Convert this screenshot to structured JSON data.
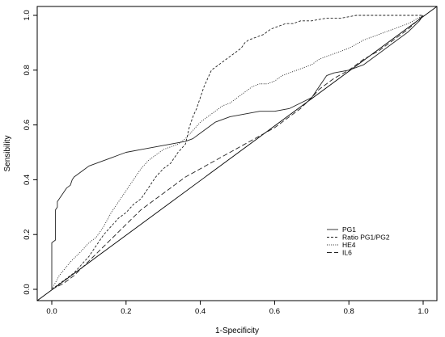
{
  "chart_data": {
    "type": "line",
    "title": "",
    "xlabel": "1-Specificity",
    "ylabel": "Sensibility",
    "xlim": [
      0,
      1
    ],
    "ylim": [
      0,
      1
    ],
    "x_ticks": [
      "0.0",
      "0.2",
      "0.4",
      "0.6",
      "0.8",
      "1.0"
    ],
    "y_ticks": [
      "0.0",
      "0.2",
      "0.4",
      "0.6",
      "0.8",
      "1.0"
    ],
    "grid": false,
    "legend_position": "bottom-right",
    "reference_line": "diagonal",
    "series": [
      {
        "name": "PG1",
        "line_style": "solid",
        "points": [
          [
            0,
            0
          ],
          [
            0,
            0.17
          ],
          [
            0.01,
            0.18
          ],
          [
            0.01,
            0.29
          ],
          [
            0.015,
            0.3
          ],
          [
            0.015,
            0.32
          ],
          [
            0.02,
            0.33
          ],
          [
            0.025,
            0.34
          ],
          [
            0.03,
            0.35
          ],
          [
            0.04,
            0.37
          ],
          [
            0.05,
            0.38
          ],
          [
            0.055,
            0.4
          ],
          [
            0.06,
            0.41
          ],
          [
            0.07,
            0.42
          ],
          [
            0.08,
            0.43
          ],
          [
            0.09,
            0.44
          ],
          [
            0.1,
            0.45
          ],
          [
            0.12,
            0.46
          ],
          [
            0.14,
            0.47
          ],
          [
            0.16,
            0.48
          ],
          [
            0.18,
            0.49
          ],
          [
            0.2,
            0.5
          ],
          [
            0.24,
            0.51
          ],
          [
            0.28,
            0.52
          ],
          [
            0.32,
            0.53
          ],
          [
            0.36,
            0.54
          ],
          [
            0.38,
            0.55
          ],
          [
            0.4,
            0.57
          ],
          [
            0.42,
            0.59
          ],
          [
            0.44,
            0.61
          ],
          [
            0.46,
            0.62
          ],
          [
            0.48,
            0.63
          ],
          [
            0.52,
            0.64
          ],
          [
            0.56,
            0.65
          ],
          [
            0.6,
            0.65
          ],
          [
            0.64,
            0.66
          ],
          [
            0.67,
            0.68
          ],
          [
            0.7,
            0.7
          ],
          [
            0.72,
            0.74
          ],
          [
            0.74,
            0.78
          ],
          [
            0.76,
            0.79
          ],
          [
            0.8,
            0.8
          ],
          [
            0.84,
            0.82
          ],
          [
            0.88,
            0.86
          ],
          [
            0.92,
            0.9
          ],
          [
            0.96,
            0.94
          ],
          [
            0.99,
            0.98
          ],
          [
            1.0,
            1.0
          ]
        ]
      },
      {
        "name": "Ratio PG1/PG2",
        "line_style": "dashed",
        "points": [
          [
            0,
            0
          ],
          [
            0.02,
            0.02
          ],
          [
            0.04,
            0.04
          ],
          [
            0.06,
            0.06
          ],
          [
            0.08,
            0.09
          ],
          [
            0.1,
            0.12
          ],
          [
            0.12,
            0.16
          ],
          [
            0.14,
            0.2
          ],
          [
            0.16,
            0.23
          ],
          [
            0.18,
            0.26
          ],
          [
            0.2,
            0.28
          ],
          [
            0.22,
            0.31
          ],
          [
            0.24,
            0.33
          ],
          [
            0.26,
            0.37
          ],
          [
            0.28,
            0.41
          ],
          [
            0.3,
            0.44
          ],
          [
            0.32,
            0.46
          ],
          [
            0.34,
            0.5
          ],
          [
            0.36,
            0.53
          ],
          [
            0.37,
            0.59
          ],
          [
            0.38,
            0.63
          ],
          [
            0.39,
            0.66
          ],
          [
            0.4,
            0.7
          ],
          [
            0.41,
            0.74
          ],
          [
            0.42,
            0.77
          ],
          [
            0.43,
            0.8
          ],
          [
            0.45,
            0.82
          ],
          [
            0.47,
            0.84
          ],
          [
            0.49,
            0.86
          ],
          [
            0.5,
            0.87
          ],
          [
            0.51,
            0.88
          ],
          [
            0.52,
            0.9
          ],
          [
            0.53,
            0.91
          ],
          [
            0.55,
            0.92
          ],
          [
            0.57,
            0.93
          ],
          [
            0.59,
            0.95
          ],
          [
            0.61,
            0.96
          ],
          [
            0.63,
            0.97
          ],
          [
            0.65,
            0.97
          ],
          [
            0.67,
            0.98
          ],
          [
            0.7,
            0.98
          ],
          [
            0.74,
            0.99
          ],
          [
            0.78,
            0.99
          ],
          [
            0.82,
            1.0
          ],
          [
            0.88,
            1.0
          ],
          [
            0.95,
            1.0
          ],
          [
            1.0,
            1.0
          ]
        ]
      },
      {
        "name": "HE4",
        "line_style": "dotted",
        "points": [
          [
            0,
            0
          ],
          [
            0.02,
            0.05
          ],
          [
            0.05,
            0.1
          ],
          [
            0.08,
            0.14
          ],
          [
            0.1,
            0.17
          ],
          [
            0.12,
            0.19
          ],
          [
            0.14,
            0.23
          ],
          [
            0.16,
            0.28
          ],
          [
            0.18,
            0.32
          ],
          [
            0.2,
            0.36
          ],
          [
            0.22,
            0.4
          ],
          [
            0.24,
            0.44
          ],
          [
            0.26,
            0.47
          ],
          [
            0.28,
            0.49
          ],
          [
            0.3,
            0.51
          ],
          [
            0.32,
            0.52
          ],
          [
            0.34,
            0.53
          ],
          [
            0.36,
            0.55
          ],
          [
            0.38,
            0.58
          ],
          [
            0.4,
            0.61
          ],
          [
            0.42,
            0.63
          ],
          [
            0.44,
            0.65
          ],
          [
            0.46,
            0.67
          ],
          [
            0.48,
            0.68
          ],
          [
            0.5,
            0.7
          ],
          [
            0.52,
            0.72
          ],
          [
            0.54,
            0.74
          ],
          [
            0.56,
            0.75
          ],
          [
            0.58,
            0.75
          ],
          [
            0.6,
            0.76
          ],
          [
            0.62,
            0.78
          ],
          [
            0.64,
            0.79
          ],
          [
            0.66,
            0.8
          ],
          [
            0.68,
            0.81
          ],
          [
            0.7,
            0.82
          ],
          [
            0.72,
            0.84
          ],
          [
            0.74,
            0.85
          ],
          [
            0.76,
            0.86
          ],
          [
            0.8,
            0.88
          ],
          [
            0.84,
            0.91
          ],
          [
            0.88,
            0.93
          ],
          [
            0.92,
            0.95
          ],
          [
            0.96,
            0.97
          ],
          [
            1.0,
            1.0
          ]
        ]
      },
      {
        "name": "IL6",
        "line_style": "longdash",
        "points": [
          [
            0,
            0
          ],
          [
            0.03,
            0.02
          ],
          [
            0.06,
            0.05
          ],
          [
            0.09,
            0.09
          ],
          [
            0.12,
            0.13
          ],
          [
            0.15,
            0.17
          ],
          [
            0.18,
            0.21
          ],
          [
            0.21,
            0.25
          ],
          [
            0.24,
            0.29
          ],
          [
            0.27,
            0.32
          ],
          [
            0.3,
            0.35
          ],
          [
            0.33,
            0.38
          ],
          [
            0.36,
            0.41
          ],
          [
            0.4,
            0.44
          ],
          [
            0.44,
            0.47
          ],
          [
            0.48,
            0.5
          ],
          [
            0.52,
            0.53
          ],
          [
            0.56,
            0.56
          ],
          [
            0.6,
            0.59
          ],
          [
            0.64,
            0.63
          ],
          [
            0.67,
            0.66
          ],
          [
            0.7,
            0.7
          ],
          [
            0.72,
            0.73
          ],
          [
            0.74,
            0.75
          ],
          [
            0.76,
            0.77
          ],
          [
            0.8,
            0.8
          ],
          [
            0.84,
            0.84
          ],
          [
            0.88,
            0.87
          ],
          [
            0.92,
            0.91
          ],
          [
            0.96,
            0.95
          ],
          [
            1.0,
            1.0
          ]
        ]
      }
    ]
  }
}
